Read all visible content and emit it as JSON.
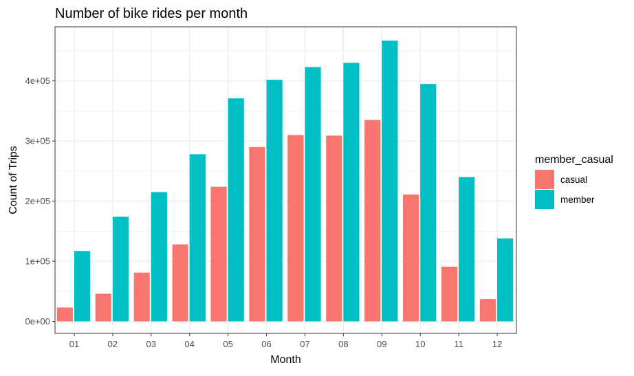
{
  "chart_data": {
    "type": "bar",
    "title": "Number of bike rides per month",
    "xlabel": "Month",
    "ylabel": "Count of Trips",
    "categories": [
      "01",
      "02",
      "03",
      "04",
      "05",
      "06",
      "07",
      "08",
      "09",
      "10",
      "11",
      "12"
    ],
    "series": [
      {
        "name": "casual",
        "color": "#F8766D",
        "values": [
          23000,
          46000,
          81000,
          128000,
          224000,
          290000,
          310000,
          309000,
          335000,
          211000,
          91000,
          37000
        ]
      },
      {
        "name": "member",
        "color": "#00BFC4",
        "values": [
          117000,
          174000,
          215000,
          278000,
          371000,
          402000,
          423000,
          430000,
          467000,
          395000,
          240000,
          138000
        ]
      }
    ],
    "ylim": [
      -20000,
      490000
    ],
    "y_ticks": [
      0,
      100000,
      200000,
      300000,
      400000
    ],
    "y_tick_labels": [
      "0e+00",
      "1e+05",
      "2e+05",
      "3e+05",
      "4e+05"
    ],
    "grid": true,
    "legend": {
      "title": "member_casual",
      "position": "right"
    }
  }
}
